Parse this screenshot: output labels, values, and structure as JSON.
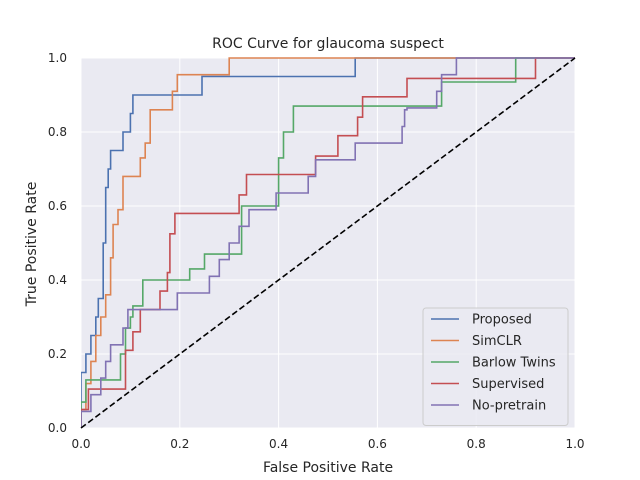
{
  "chart_data": {
    "type": "line",
    "title": "ROC Curve for  glaucoma suspect",
    "xlabel": "False Positive Rate",
    "ylabel": "True Positive Rate",
    "xlim": [
      0.0,
      1.0
    ],
    "ylim": [
      0.0,
      1.0
    ],
    "x_ticks": [
      "0.0",
      "0.2",
      "0.4",
      "0.6",
      "0.8",
      "1.0"
    ],
    "y_ticks": [
      "0.0",
      "0.2",
      "0.4",
      "0.6",
      "0.8",
      "1.0"
    ],
    "grid": true,
    "legend_position": "lower-right",
    "series": [
      {
        "name": "Proposed",
        "color": "#4c72b0",
        "points": [
          [
            0,
            0
          ],
          [
            0,
            0.15
          ],
          [
            0.01,
            0.15
          ],
          [
            0.01,
            0.2
          ],
          [
            0.02,
            0.2
          ],
          [
            0.02,
            0.25
          ],
          [
            0.03,
            0.25
          ],
          [
            0.03,
            0.3
          ],
          [
            0.035,
            0.3
          ],
          [
            0.035,
            0.35
          ],
          [
            0.045,
            0.35
          ],
          [
            0.045,
            0.5
          ],
          [
            0.05,
            0.5
          ],
          [
            0.05,
            0.65
          ],
          [
            0.055,
            0.65
          ],
          [
            0.055,
            0.7
          ],
          [
            0.06,
            0.7
          ],
          [
            0.06,
            0.75
          ],
          [
            0.085,
            0.75
          ],
          [
            0.085,
            0.8
          ],
          [
            0.1,
            0.8
          ],
          [
            0.1,
            0.85
          ],
          [
            0.105,
            0.85
          ],
          [
            0.105,
            0.9
          ],
          [
            0.245,
            0.9
          ],
          [
            0.245,
            0.95
          ],
          [
            0.555,
            0.95
          ],
          [
            0.555,
            1.0
          ],
          [
            1.0,
            1.0
          ]
        ]
      },
      {
        "name": "SimCLR",
        "color": "#dd8452",
        "points": [
          [
            0,
            0
          ],
          [
            0,
            0.05
          ],
          [
            0.01,
            0.05
          ],
          [
            0.01,
            0.12
          ],
          [
            0.02,
            0.12
          ],
          [
            0.02,
            0.18
          ],
          [
            0.03,
            0.18
          ],
          [
            0.03,
            0.25
          ],
          [
            0.04,
            0.25
          ],
          [
            0.04,
            0.3
          ],
          [
            0.05,
            0.3
          ],
          [
            0.05,
            0.36
          ],
          [
            0.06,
            0.36
          ],
          [
            0.06,
            0.46
          ],
          [
            0.065,
            0.46
          ],
          [
            0.065,
            0.55
          ],
          [
            0.075,
            0.55
          ],
          [
            0.075,
            0.59
          ],
          [
            0.085,
            0.59
          ],
          [
            0.085,
            0.68
          ],
          [
            0.12,
            0.68
          ],
          [
            0.12,
            0.73
          ],
          [
            0.13,
            0.73
          ],
          [
            0.13,
            0.77
          ],
          [
            0.14,
            0.77
          ],
          [
            0.14,
            0.86
          ],
          [
            0.185,
            0.86
          ],
          [
            0.185,
            0.91
          ],
          [
            0.195,
            0.91
          ],
          [
            0.195,
            0.955
          ],
          [
            0.3,
            0.955
          ],
          [
            0.3,
            1.0
          ],
          [
            1.0,
            1.0
          ]
        ]
      },
      {
        "name": "Barlow Twins",
        "color": "#55a868",
        "points": [
          [
            0,
            0
          ],
          [
            0,
            0.07
          ],
          [
            0.01,
            0.07
          ],
          [
            0.01,
            0.13
          ],
          [
            0.08,
            0.13
          ],
          [
            0.08,
            0.2
          ],
          [
            0.09,
            0.2
          ],
          [
            0.09,
            0.27
          ],
          [
            0.1,
            0.27
          ],
          [
            0.1,
            0.3
          ],
          [
            0.105,
            0.3
          ],
          [
            0.105,
            0.33
          ],
          [
            0.125,
            0.33
          ],
          [
            0.125,
            0.4
          ],
          [
            0.22,
            0.4
          ],
          [
            0.22,
            0.43
          ],
          [
            0.25,
            0.43
          ],
          [
            0.25,
            0.47
          ],
          [
            0.325,
            0.47
          ],
          [
            0.325,
            0.6
          ],
          [
            0.4,
            0.6
          ],
          [
            0.4,
            0.73
          ],
          [
            0.41,
            0.73
          ],
          [
            0.41,
            0.8
          ],
          [
            0.43,
            0.8
          ],
          [
            0.43,
            0.87
          ],
          [
            0.73,
            0.87
          ],
          [
            0.73,
            0.935
          ],
          [
            0.88,
            0.935
          ],
          [
            0.88,
            1.0
          ],
          [
            1.0,
            1.0
          ]
        ]
      },
      {
        "name": "Supervised",
        "color": "#c44e52",
        "points": [
          [
            0,
            0
          ],
          [
            0,
            0.05
          ],
          [
            0.015,
            0.05
          ],
          [
            0.015,
            0.105
          ],
          [
            0.09,
            0.105
          ],
          [
            0.09,
            0.21
          ],
          [
            0.105,
            0.21
          ],
          [
            0.105,
            0.26
          ],
          [
            0.12,
            0.26
          ],
          [
            0.12,
            0.32
          ],
          [
            0.16,
            0.32
          ],
          [
            0.16,
            0.37
          ],
          [
            0.175,
            0.37
          ],
          [
            0.175,
            0.42
          ],
          [
            0.18,
            0.42
          ],
          [
            0.18,
            0.525
          ],
          [
            0.19,
            0.525
          ],
          [
            0.19,
            0.58
          ],
          [
            0.32,
            0.58
          ],
          [
            0.32,
            0.63
          ],
          [
            0.335,
            0.63
          ],
          [
            0.335,
            0.685
          ],
          [
            0.475,
            0.685
          ],
          [
            0.475,
            0.735
          ],
          [
            0.52,
            0.735
          ],
          [
            0.52,
            0.79
          ],
          [
            0.56,
            0.79
          ],
          [
            0.56,
            0.84
          ],
          [
            0.57,
            0.84
          ],
          [
            0.57,
            0.895
          ],
          [
            0.66,
            0.895
          ],
          [
            0.66,
            0.945
          ],
          [
            0.92,
            0.945
          ],
          [
            0.92,
            1.0
          ],
          [
            1.0,
            1.0
          ]
        ]
      },
      {
        "name": "No-pretrain",
        "color": "#8172b3",
        "points": [
          [
            0,
            0
          ],
          [
            0,
            0.045
          ],
          [
            0.02,
            0.045
          ],
          [
            0.02,
            0.09
          ],
          [
            0.04,
            0.09
          ],
          [
            0.04,
            0.135
          ],
          [
            0.05,
            0.135
          ],
          [
            0.05,
            0.18
          ],
          [
            0.06,
            0.18
          ],
          [
            0.06,
            0.225
          ],
          [
            0.085,
            0.225
          ],
          [
            0.085,
            0.27
          ],
          [
            0.095,
            0.27
          ],
          [
            0.095,
            0.32
          ],
          [
            0.195,
            0.32
          ],
          [
            0.195,
            0.365
          ],
          [
            0.26,
            0.365
          ],
          [
            0.26,
            0.41
          ],
          [
            0.28,
            0.41
          ],
          [
            0.28,
            0.455
          ],
          [
            0.3,
            0.455
          ],
          [
            0.3,
            0.5
          ],
          [
            0.32,
            0.5
          ],
          [
            0.32,
            0.545
          ],
          [
            0.34,
            0.545
          ],
          [
            0.34,
            0.59
          ],
          [
            0.395,
            0.59
          ],
          [
            0.395,
            0.635
          ],
          [
            0.46,
            0.635
          ],
          [
            0.46,
            0.68
          ],
          [
            0.475,
            0.68
          ],
          [
            0.475,
            0.725
          ],
          [
            0.555,
            0.725
          ],
          [
            0.555,
            0.77
          ],
          [
            0.65,
            0.77
          ],
          [
            0.65,
            0.815
          ],
          [
            0.655,
            0.815
          ],
          [
            0.655,
            0.86
          ],
          [
            0.66,
            0.86
          ],
          [
            0.66,
            0.865
          ],
          [
            0.72,
            0.865
          ],
          [
            0.72,
            0.91
          ],
          [
            0.73,
            0.91
          ],
          [
            0.73,
            0.955
          ],
          [
            0.76,
            0.955
          ],
          [
            0.76,
            1.0
          ],
          [
            1.0,
            1.0
          ]
        ]
      }
    ],
    "reference_line": {
      "style": "dashed",
      "color": "#000000",
      "points": [
        [
          0,
          0
        ],
        [
          1,
          1
        ]
      ]
    }
  }
}
